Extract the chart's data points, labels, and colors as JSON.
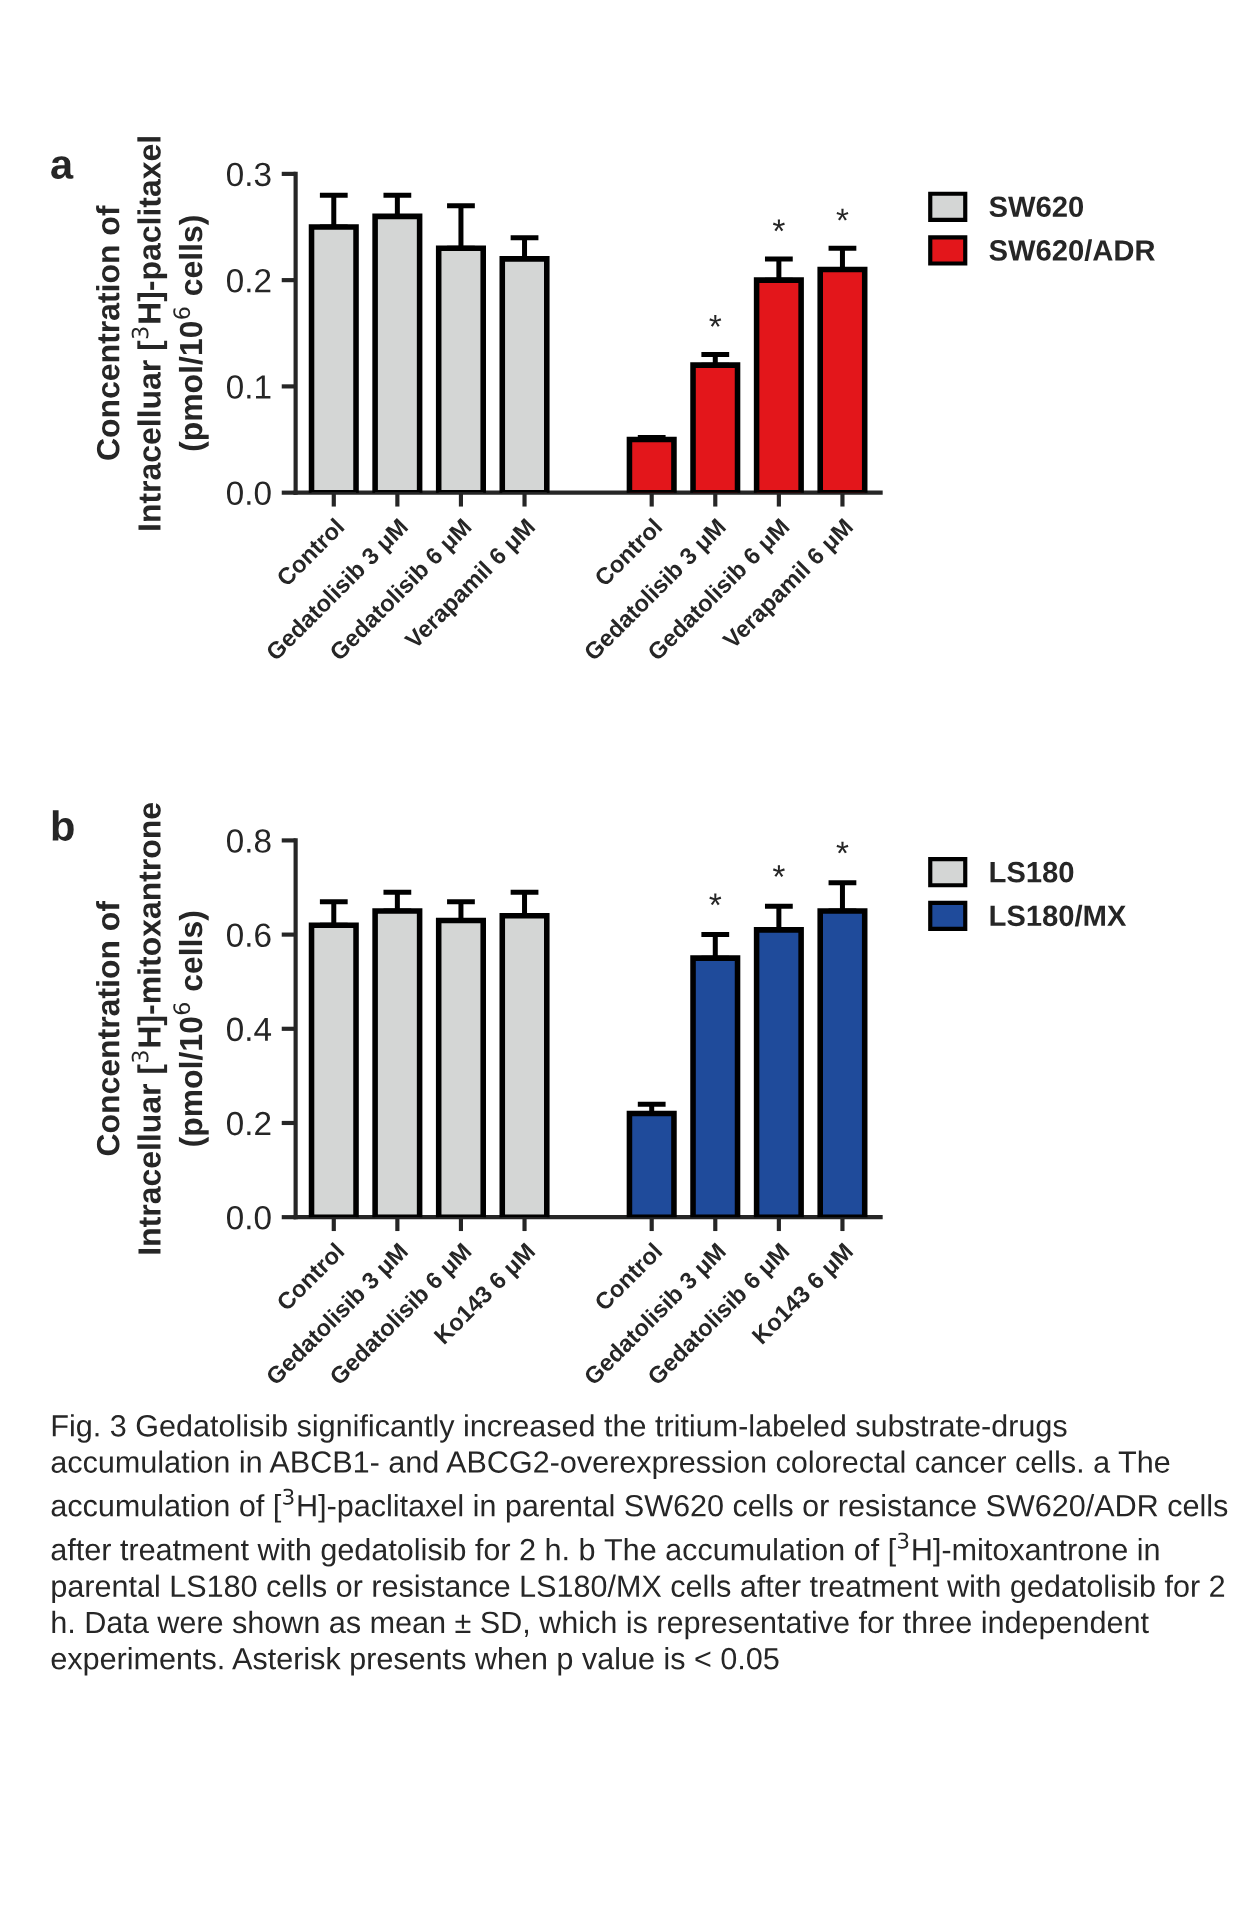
{
  "chart_data": [
    {
      "type": "bar",
      "title": "a",
      "ylabel": "Concentration of\nIntracelluar [$^{3}$H]-paclitaxel\n(pmol/10$^{6}$ cells)",
      "categories": [
        "Control",
        "Gedatolisib 3 μM",
        "Gedatolisib 6 μM",
        "Verapamil 6 μM",
        null,
        "Control",
        "Gedatolisib 3 μM",
        "Gedatolisib 6 μM",
        "Verapamil 6 μM"
      ],
      "series": [
        {
          "name": "SW620",
          "color": "#d4d6d5",
          "values": [
            0.25,
            0.26,
            0.23,
            0.22,
            null,
            null,
            null,
            null,
            null
          ],
          "errors": [
            [
              0.25,
              0.28
            ],
            [
              0.26,
              0.28
            ],
            [
              0.23,
              0.27
            ],
            [
              0.22,
              0.24
            ],
            null,
            null,
            null,
            null,
            null
          ]
        },
        {
          "name": "SW620/ADR",
          "color": "#e3161b",
          "values": [
            null,
            null,
            null,
            null,
            null,
            0.05,
            0.12,
            0.2,
            0.21
          ],
          "errors": [
            null,
            null,
            null,
            null,
            null,
            [
              0.05,
              0.052
            ],
            [
              0.12,
              0.13
            ],
            [
              0.2,
              0.22
            ],
            [
              0.21,
              0.23
            ]
          ],
          "value_labels": [
            null,
            null,
            null,
            null,
            null,
            null,
            "*",
            "*",
            "*"
          ]
        }
      ],
      "ylim": [
        0,
        0.3
      ],
      "yticks": [
        {
          "value": 0,
          "label": "0.0"
        },
        0.1,
        0.2,
        0.3
      ],
      "legend": "top right",
      "grid": false
    },
    {
      "type": "bar",
      "title": "b",
      "ylabel": "Concentration of\nIntracelluar [$^{3}$H]-mitoxantrone\n(pmol/10$^{6}$ cells)",
      "categories": [
        "Control",
        "Gedatolisib 3 μM",
        "Gedatolisib 6 μM",
        "Ko143 6 μM",
        null,
        "Control",
        "Gedatolisib 3 μM",
        "Gedatolisib 6 μM",
        "Ko143 6 μM"
      ],
      "series": [
        {
          "name": "LS180",
          "color": "#d4d6d5",
          "values": [
            0.62,
            0.65,
            0.63,
            0.64,
            null,
            null,
            null,
            null,
            null
          ],
          "errors": [
            [
              0.62,
              0.67
            ],
            [
              0.65,
              0.69
            ],
            [
              0.63,
              0.67
            ],
            [
              0.64,
              0.69
            ],
            null,
            null,
            null,
            null,
            null
          ]
        },
        {
          "name": "LS180/MX",
          "color": "#1f4b9b",
          "values": [
            null,
            null,
            null,
            null,
            null,
            0.22,
            0.55,
            0.61,
            0.65
          ],
          "errors": [
            null,
            null,
            null,
            null,
            null,
            [
              0.22,
              0.24
            ],
            [
              0.55,
              0.6
            ],
            [
              0.61,
              0.66
            ],
            [
              0.65,
              0.71
            ]
          ],
          "value_labels": [
            null,
            null,
            null,
            null,
            null,
            null,
            "*",
            "*",
            "*"
          ]
        }
      ],
      "ylim": [
        0,
        0.8
      ],
      "yticks": [
        {
          "value": 0,
          "label": "0.0"
        },
        0.2,
        0.4,
        0.6,
        0.8
      ],
      "annotations": [
        "Fig. 3 Gedatolisib significantly increased the tritium-labeled substrate-drugs accumulation in ABCB1- and ABCG2-overexpression colorectal cancer cells. a The accumulation of [$^{3}$H]-paclitaxel in parental SW620 cells or resistance SW620/ADR cells after treatment with gedatolisib for 2 h. b The accumulation of [$^{3}$H]-mitoxantrone in parental LS180 cells or resistance LS180/MX cells after treatment with gedatolisib for 2 h. Data were shown as mean ± SD, which is representative for three independent experiments. Asterisk presents when p value is < 0.05"
      ],
      "legend": "top right",
      "grid": false
    }
  ]
}
